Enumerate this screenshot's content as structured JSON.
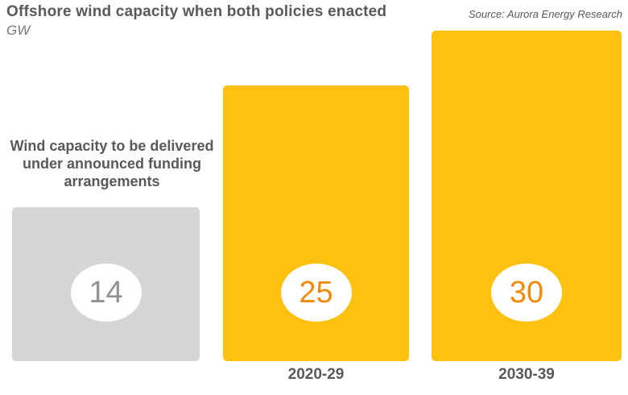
{
  "header": {
    "title": "Offshore wind capacity when both policies enacted",
    "unit_label": "GW",
    "source": "Source: Aurora Energy Research"
  },
  "annotation": {
    "text": "Wind capacity to be delivered under announced funding arrangements"
  },
  "chart_data": {
    "type": "bar",
    "title": "Offshore wind capacity when both policies enacted",
    "ylabel": "GW",
    "source": "Source: Aurora Energy Research",
    "categories": [
      "",
      "2020-29",
      "2030-39"
    ],
    "values": [
      14,
      25,
      30
    ],
    "ylim": [
      0,
      30
    ],
    "grid": false,
    "legend": "none",
    "bar_fills": [
      "#d6d6d6",
      "#fdc110",
      "#fdc110"
    ],
    "value_label_colors": [
      "#919295",
      "#f18a0b",
      "#f18a0b"
    ],
    "value_badge_style": "white-ellipse",
    "annotations": [
      "Wind capacity to be delivered under announced funding arrangements"
    ]
  },
  "colors": {
    "background": "#ffffff",
    "title_text": "#58595b",
    "accent_yellow": "#fdc110",
    "neutral_gray_bar": "#d6d6d6",
    "value_orange": "#f18a0b",
    "value_gray": "#919295"
  }
}
